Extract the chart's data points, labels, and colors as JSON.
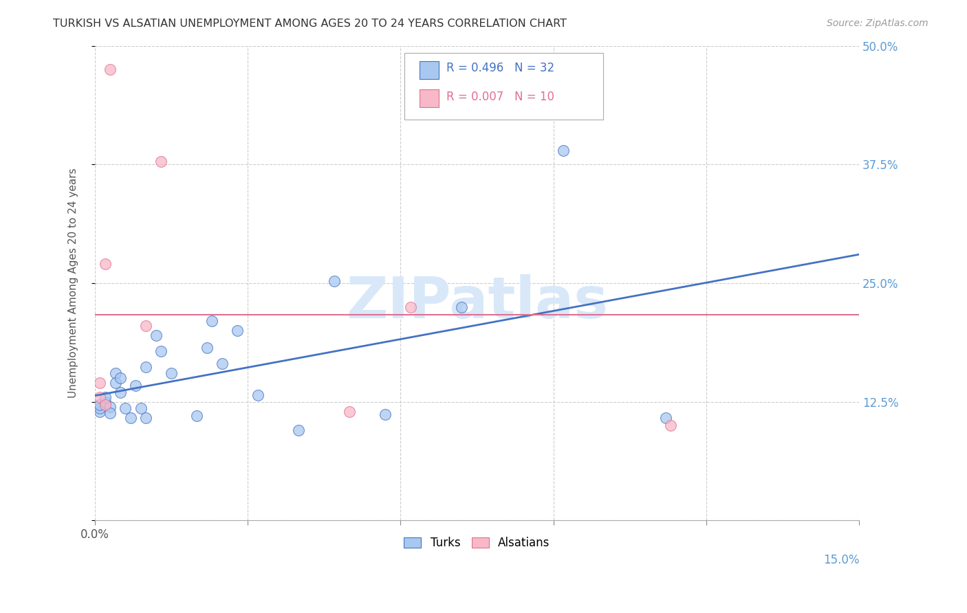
{
  "title": "TURKISH VS ALSATIAN UNEMPLOYMENT AMONG AGES 20 TO 24 YEARS CORRELATION CHART",
  "source": "Source: ZipAtlas.com",
  "ylabel": "Unemployment Among Ages 20 to 24 years",
  "xlim": [
    0.0,
    0.15
  ],
  "ylim": [
    0.0,
    0.5
  ],
  "yticks": [
    0.0,
    0.125,
    0.25,
    0.375,
    0.5
  ],
  "ytick_labels_right": [
    "",
    "12.5%",
    "25.0%",
    "37.5%",
    "50.0%"
  ],
  "turks_x": [
    0.001,
    0.001,
    0.001,
    0.002,
    0.002,
    0.003,
    0.003,
    0.004,
    0.004,
    0.005,
    0.005,
    0.006,
    0.007,
    0.008,
    0.009,
    0.01,
    0.01,
    0.012,
    0.013,
    0.015,
    0.02,
    0.022,
    0.023,
    0.025,
    0.028,
    0.032,
    0.04,
    0.047,
    0.057,
    0.072,
    0.092,
    0.112
  ],
  "turks_y": [
    0.115,
    0.118,
    0.122,
    0.125,
    0.13,
    0.12,
    0.113,
    0.155,
    0.145,
    0.15,
    0.135,
    0.118,
    0.108,
    0.142,
    0.118,
    0.108,
    0.162,
    0.195,
    0.178,
    0.155,
    0.11,
    0.182,
    0.21,
    0.165,
    0.2,
    0.132,
    0.095,
    0.252,
    0.112,
    0.225,
    0.39,
    0.108
  ],
  "alsatians_x": [
    0.001,
    0.001,
    0.002,
    0.002,
    0.003,
    0.01,
    0.013,
    0.05,
    0.062,
    0.113
  ],
  "alsatians_y": [
    0.13,
    0.145,
    0.122,
    0.27,
    0.475,
    0.205,
    0.378,
    0.115,
    0.225,
    0.1
  ],
  "turks_R": 0.496,
  "turks_N": 32,
  "alsatians_R": 0.007,
  "alsatians_N": 10,
  "turks_scatter_color": "#A8C8F0",
  "alsatians_scatter_color": "#F8B8C8",
  "turks_line_color": "#4472C4",
  "alsatians_line_color": "#E07090",
  "watermark_text": "ZIPatlas",
  "watermark_color": "#D8E8F8",
  "background_color": "#FFFFFF",
  "grid_color": "#CCCCCC",
  "title_color": "#333333",
  "source_color": "#999999",
  "tick_label_color": "#5B9BD5",
  "ylabel_color": "#555555"
}
